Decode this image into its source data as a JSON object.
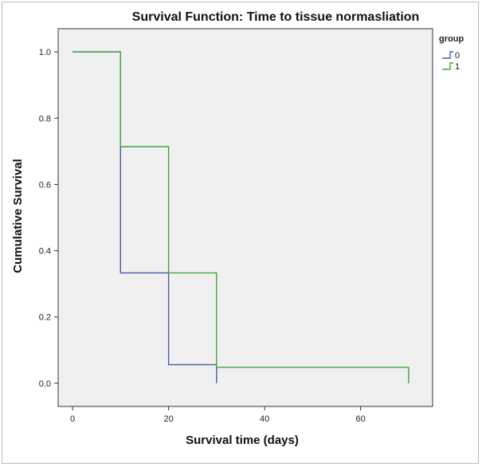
{
  "chart_data": {
    "type": "line",
    "subtype": "step",
    "title": "Survival Function: Time to tissue normasliation",
    "xlabel": "Survival time (days)",
    "ylabel": "Cumulative Survival",
    "xlim": [
      -3,
      75
    ],
    "ylim": [
      -0.07,
      1.07
    ],
    "xticks": [
      0,
      20,
      40,
      60
    ],
    "xtick_labels": [
      "0",
      "20",
      "40",
      "60"
    ],
    "yticks": [
      0.0,
      0.2,
      0.4,
      0.6,
      0.8,
      1.0
    ],
    "ytick_labels": [
      "0.0",
      "0.2",
      "0.4",
      "0.6",
      "0.8",
      "1.0"
    ],
    "grid": false,
    "legend": {
      "title": "group",
      "position": "top-right"
    },
    "series": [
      {
        "name": "0",
        "color": "#4a5aa8",
        "x": [
          0,
          10,
          10,
          20,
          20,
          30,
          30
        ],
        "y": [
          1.0,
          1.0,
          0.333,
          0.333,
          0.056,
          0.056,
          0.0
        ]
      },
      {
        "name": "1",
        "color": "#3aa83a",
        "x": [
          0,
          10,
          10,
          20,
          20,
          30,
          30,
          70,
          70
        ],
        "y": [
          1.0,
          1.0,
          0.714,
          0.714,
          0.333,
          0.333,
          0.048,
          0.048,
          0.0
        ]
      }
    ],
    "colors": {
      "plot_background": "#f0f0f0",
      "axis": "#333333"
    }
  }
}
